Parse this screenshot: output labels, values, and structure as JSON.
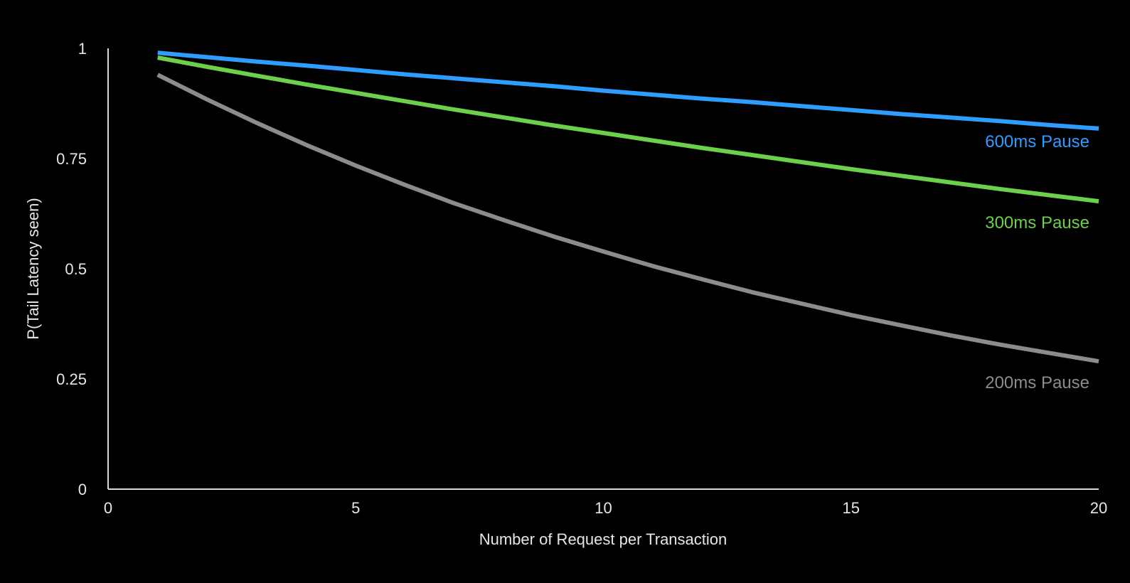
{
  "chart_data": {
    "type": "line",
    "title": "",
    "xlabel": "Number of Request per Transaction",
    "ylabel": "P(Tail Latency seen)",
    "xlim": [
      0,
      20
    ],
    "ylim": [
      0,
      1
    ],
    "x_ticks": [
      {
        "value": 0,
        "label": "0"
      },
      {
        "value": 5,
        "label": "5"
      },
      {
        "value": 10,
        "label": "10"
      },
      {
        "value": 15,
        "label": "15"
      },
      {
        "value": 20,
        "label": "20"
      }
    ],
    "y_ticks": [
      {
        "value": 0,
        "label": "0"
      },
      {
        "value": 0.25,
        "label": "0.25"
      },
      {
        "value": 0.5,
        "label": "0.5"
      },
      {
        "value": 0.75,
        "label": "0.75"
      },
      {
        "value": 1,
        "label": "1"
      }
    ],
    "grid": false,
    "legend": "inline labels at right end of each series",
    "x": [
      1,
      2,
      3,
      4,
      5,
      6,
      7,
      8,
      9,
      10,
      11,
      12,
      13,
      14,
      15,
      16,
      17,
      18,
      19,
      20
    ],
    "series": [
      {
        "name": "600ms Pause",
        "label": "600ms Pause",
        "color": "#2f9cff",
        "values": [
          0.99,
          0.98,
          0.97,
          0.961,
          0.951,
          0.941,
          0.932,
          0.923,
          0.914,
          0.904,
          0.895,
          0.886,
          0.878,
          0.869,
          0.86,
          0.851,
          0.843,
          0.835,
          0.826,
          0.818
        ]
      },
      {
        "name": "300ms Pause",
        "label": "300ms Pause",
        "color": "#6dd04a",
        "values": [
          0.979,
          0.958,
          0.938,
          0.918,
          0.899,
          0.88,
          0.861,
          0.843,
          0.825,
          0.808,
          0.791,
          0.774,
          0.758,
          0.742,
          0.726,
          0.711,
          0.696,
          0.681,
          0.667,
          0.653
        ]
      },
      {
        "name": "200ms Pause",
        "label": "200ms Pause",
        "color": "#8c8c8c",
        "values": [
          0.94,
          0.884,
          0.831,
          0.781,
          0.734,
          0.69,
          0.648,
          0.61,
          0.573,
          0.539,
          0.506,
          0.476,
          0.447,
          0.421,
          0.395,
          0.372,
          0.349,
          0.328,
          0.309,
          0.29
        ]
      }
    ]
  }
}
